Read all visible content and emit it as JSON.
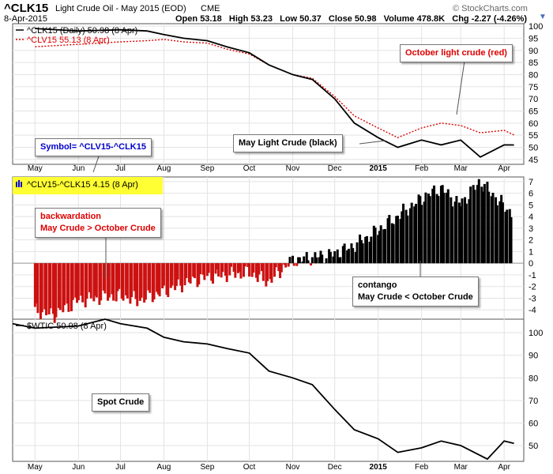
{
  "header": {
    "symbol": "^CLK15",
    "name": "Light Crude Oil - May 2015 (EOD)",
    "exchange": "CME",
    "watermark": "© StockCharts.com",
    "date": "8-Apr-2015",
    "open_label": "Open",
    "open": "53.18",
    "high_label": "High",
    "high": "53.23",
    "low_label": "Low",
    "low": "50.37",
    "close_label": "Close",
    "close": "50.98",
    "volume_label": "Volume",
    "volume": "478.8K",
    "chg_label": "Chg",
    "chg": "-2.27 (-4.26%)"
  },
  "colors": {
    "may": "#000000",
    "october": "#dd0000",
    "contango": "#000000",
    "backwardation": "#cc1111",
    "callout_blue": "#0000cc",
    "highlight": "#ffff33"
  },
  "callouts": {
    "october": "October light crude (red)",
    "may": "May Light Crude (black)",
    "symbol": "Symbol= ^CLV15-^CLK15",
    "backwardation_1": "backwardation",
    "backwardation_2": "May Crude > October Crude",
    "contango_1": "contango",
    "contango_2": "May Crude < October Crude",
    "spot": "Spot Crude"
  },
  "chart_data": [
    {
      "type": "line",
      "legend": [
        "^CLK15 (Daily) 50.98 (8 Apr)",
        "^CLV15 55.13 (8 Apr)"
      ],
      "x_ticks": [
        "May",
        "Jun",
        "Jul",
        "Aug",
        "Sep",
        "Oct",
        "Nov",
        "Dec",
        "2015",
        "Feb",
        "Mar",
        "Apr"
      ],
      "y_ticks": [
        "45",
        "50",
        "55",
        "60",
        "65",
        "70",
        "75",
        "80",
        "85",
        "90",
        "95",
        "100"
      ],
      "ylim": [
        43,
        101
      ],
      "series": [
        {
          "name": "^CLK15",
          "color": "#000000",
          "x": [
            "2014-05-01",
            "2014-06-01",
            "2014-07-01",
            "2014-07-20",
            "2014-08-01",
            "2014-08-15",
            "2014-09-01",
            "2014-09-15",
            "2014-10-01",
            "2014-10-15",
            "2014-11-01",
            "2014-11-15",
            "2014-12-01",
            "2014-12-15",
            "2015-01-01",
            "2015-01-15",
            "2015-02-01",
            "2015-02-15",
            "2015-03-01",
            "2015-03-15",
            "2015-04-01",
            "2015-04-08"
          ],
          "y": [
            99,
            98,
            98.5,
            98,
            96.5,
            95,
            94,
            91.5,
            89,
            84,
            80,
            78,
            70,
            60,
            54,
            50,
            53,
            51,
            53,
            46,
            51,
            50.98
          ]
        },
        {
          "name": "^CLV15",
          "color": "#dd0000",
          "x": [
            "2014-05-01",
            "2014-06-01",
            "2014-07-01",
            "2014-07-20",
            "2014-08-01",
            "2014-08-15",
            "2014-09-01",
            "2014-09-15",
            "2014-10-01",
            "2014-10-15",
            "2014-11-01",
            "2014-11-15",
            "2014-12-01",
            "2014-12-15",
            "2015-01-01",
            "2015-01-15",
            "2015-02-01",
            "2015-02-15",
            "2015-03-01",
            "2015-03-15",
            "2015-04-01",
            "2015-04-08"
          ],
          "y": [
            91.5,
            92.5,
            93.5,
            94,
            94.5,
            93.5,
            93,
            90.5,
            88.5,
            84,
            80,
            78.5,
            71,
            63,
            58,
            54,
            58,
            60,
            59,
            56,
            57,
            55.13
          ]
        }
      ]
    },
    {
      "type": "bar",
      "legend": [
        "^CLV15-^CLK15 4.15 (8 Apr)"
      ],
      "x_ticks": [
        "May",
        "Jun",
        "Jul",
        "Aug",
        "Sep",
        "Oct",
        "Nov",
        "Dec",
        "2015",
        "Feb",
        "Mar",
        "Apr"
      ],
      "y_ticks": [
        "-4",
        "-3",
        "-2",
        "-1",
        "0",
        "1",
        "2",
        "3",
        "4",
        "5",
        "6",
        "7"
      ],
      "ylim": [
        -4.8,
        7.4
      ],
      "x": [
        "2014-05-01",
        "2014-05-15",
        "2014-06-01",
        "2014-06-15",
        "2014-07-01",
        "2014-07-15",
        "2014-08-01",
        "2014-08-15",
        "2014-09-01",
        "2014-09-15",
        "2014-10-01",
        "2014-10-15",
        "2014-11-01",
        "2014-11-15",
        "2014-12-01",
        "2014-12-15",
        "2015-01-01",
        "2015-01-15",
        "2015-02-01",
        "2015-02-15",
        "2015-03-01",
        "2015-03-15",
        "2015-04-01",
        "2015-04-08"
      ],
      "values": [
        -4.0,
        -4.5,
        -3.2,
        -3.0,
        -2.8,
        -3.2,
        -2.5,
        -1.8,
        -1.2,
        -1.0,
        -0.8,
        -1.6,
        0.2,
        0.5,
        0.8,
        1.5,
        2.8,
        4.0,
        5.5,
        6.5,
        5.0,
        7.0,
        5.0,
        4.15
      ]
    },
    {
      "type": "line",
      "legend": [
        "$WTIC 50.98 (8 Apr)"
      ],
      "x_ticks": [
        "May",
        "Jun",
        "Jul",
        "Aug",
        "Sep",
        "Oct",
        "Nov",
        "Dec",
        "2015",
        "Feb",
        "Mar",
        "Apr"
      ],
      "y_ticks": [
        "50",
        "60",
        "70",
        "80",
        "90",
        "100"
      ],
      "ylim": [
        43,
        106
      ],
      "series": [
        {
          "name": "$WTIC",
          "color": "#000000",
          "x": [
            "2014-04-15",
            "2014-05-01",
            "2014-06-01",
            "2014-06-20",
            "2014-07-01",
            "2014-07-20",
            "2014-08-01",
            "2014-08-15",
            "2014-09-01",
            "2014-09-15",
            "2014-10-01",
            "2014-10-15",
            "2014-11-01",
            "2014-11-15",
            "2014-12-01",
            "2014-12-15",
            "2015-01-01",
            "2015-01-15",
            "2015-02-01",
            "2015-02-15",
            "2015-03-01",
            "2015-03-20",
            "2015-04-01",
            "2015-04-08"
          ],
          "y": [
            104,
            102,
            103,
            106,
            104,
            102,
            98,
            96,
            95,
            93,
            91,
            83,
            80,
            77,
            66,
            57,
            53,
            47,
            49,
            52,
            50,
            44,
            52,
            50.98
          ]
        }
      ]
    }
  ]
}
